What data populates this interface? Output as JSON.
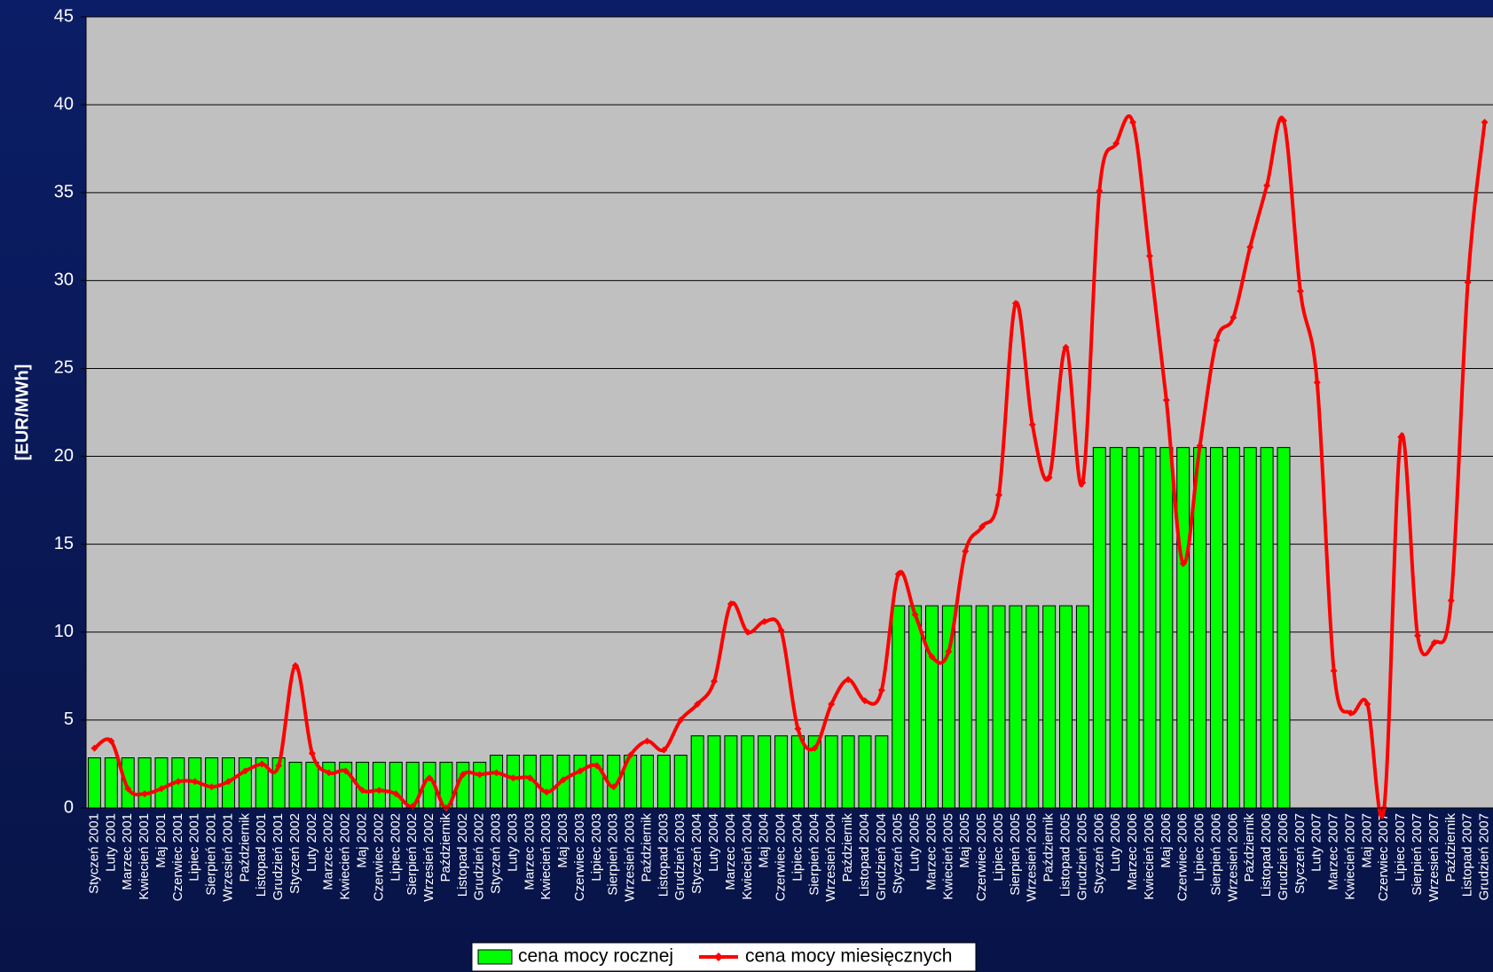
{
  "chart_data": {
    "type": "bar",
    "y_label": "[EUR/MWh]",
    "categories": [
      "Styczeń 2001",
      "Luty 2001",
      "Marzec 2001",
      "Kwiecień 2001",
      "Maj 2001",
      "Czerwiec 2001",
      "Lipiec 2001",
      "Sierpień 2001",
      "Wrzesień 2001",
      "Październik",
      "Listopad 2001",
      "Grudzień 2001",
      "Styczeń 2002",
      "Luty 2002",
      "Marzec 2002",
      "Kwiecień 2002",
      "Maj 2002",
      "Czerwiec 2002",
      "Lipiec 2002",
      "Sierpień 2002",
      "Wrzesień 2002",
      "Październik",
      "Listopad 2002",
      "Grudzień 2002",
      "Styczeń 2003",
      "Luty 2003",
      "Marzec 2003",
      "Kwiecień 2003",
      "Maj 2003",
      "Czerwiec 2003",
      "Lipiec 2003",
      "Sierpień 2003",
      "Wrzesień 2003",
      "Październik",
      "Listopad 2003",
      "Grudzień 2003",
      "Styczeń 2004",
      "Luty 2004",
      "Marzec 2004",
      "Kwiecień 2004",
      "Maj 2004",
      "Czerwiec 2004",
      "Lipiec 2004",
      "Sierpień 2004",
      "Wrzesień 2004",
      "Październik",
      "Listopad 2004",
      "Grudzień 2004",
      "Styczeń 2005",
      "Luty 2005",
      "Marzec 2005",
      "Kwiecień 2005",
      "Maj 2005",
      "Czerwiec 2005",
      "Lipiec 2005",
      "Sierpień 2005",
      "Wrzesień 2005",
      "Październik",
      "Listopad 2005",
      "Grudzień 2005",
      "Styczeń 2006",
      "Luty 2006",
      "Marzec 2006",
      "Kwiecień 2006",
      "Maj 2006",
      "Czerwiec 2006",
      "Lipiec 2006",
      "Sierpień 2006",
      "Wrzesień 2006",
      "Październik",
      "Listopad 2006",
      "Grudzień 2006",
      "Styczeń 2007",
      "Luty 2007",
      "Marzec 2007",
      "Kwiecień 2007",
      "Maj 2007",
      "Czerwiec 2007",
      "Lipiec 2007",
      "Sierpień 2007",
      "Wrzesień 2007",
      "Październik",
      "Listopad 2007",
      "Grudzień 2007"
    ],
    "series": [
      {
        "name": "cena mocy rocznej",
        "type": "bar",
        "color": "#00ff00",
        "values": [
          2.85,
          2.85,
          2.85,
          2.85,
          2.85,
          2.85,
          2.85,
          2.85,
          2.85,
          2.85,
          2.85,
          2.85,
          2.6,
          2.6,
          2.6,
          2.6,
          2.6,
          2.6,
          2.6,
          2.6,
          2.6,
          2.6,
          2.6,
          2.6,
          3.0,
          3.0,
          3.0,
          3.0,
          3.0,
          3.0,
          3.0,
          3.0,
          3.0,
          3.0,
          3.0,
          3.0,
          4.1,
          4.1,
          4.1,
          4.1,
          4.1,
          4.1,
          4.1,
          4.1,
          4.1,
          4.1,
          4.1,
          4.1,
          11.5,
          11.5,
          11.5,
          11.5,
          11.5,
          11.5,
          11.5,
          11.5,
          11.5,
          11.5,
          11.5,
          11.5,
          20.5,
          20.5,
          20.5,
          20.5,
          20.5,
          20.5,
          20.5,
          20.5,
          20.5,
          20.5,
          20.5,
          20.5,
          null,
          null,
          null,
          null,
          null,
          null,
          null,
          null,
          null,
          null,
          null,
          null
        ]
      },
      {
        "name": "cena mocy miesięcznych",
        "type": "line",
        "color": "#ff0000",
        "values": [
          3.4,
          3.8,
          1.1,
          0.8,
          1.1,
          1.5,
          1.5,
          1.2,
          1.5,
          2.1,
          2.5,
          2.4,
          8.1,
          3.1,
          2.0,
          2.1,
          1.0,
          1.0,
          0.8,
          0.1,
          1.7,
          0.0,
          1.9,
          1.9,
          2.0,
          1.7,
          1.7,
          0.9,
          1.6,
          2.1,
          2.4,
          1.2,
          3.0,
          3.8,
          3.3,
          5.0,
          5.9,
          7.2,
          11.6,
          10.0,
          10.6,
          10.1,
          4.5,
          3.4,
          5.9,
          7.3,
          6.1,
          6.7,
          13.3,
          11.0,
          8.6,
          8.9,
          14.6,
          16.0,
          17.8,
          28.7,
          21.8,
          18.8,
          26.2,
          18.5,
          35.1,
          37.8,
          39.0,
          31.4,
          23.2,
          13.9,
          20.6,
          26.6,
          27.9,
          31.9,
          35.4,
          39.1,
          29.4,
          24.2,
          7.8,
          5.4,
          5.9,
          0.0,
          21.1,
          9.8,
          9.4,
          11.8,
          29.9,
          39.0
        ]
      }
    ],
    "ylim": [
      0,
      45
    ],
    "yticks": [
      0,
      5,
      10,
      15,
      20,
      25,
      30,
      35,
      40,
      45
    ],
    "grid": true
  }
}
